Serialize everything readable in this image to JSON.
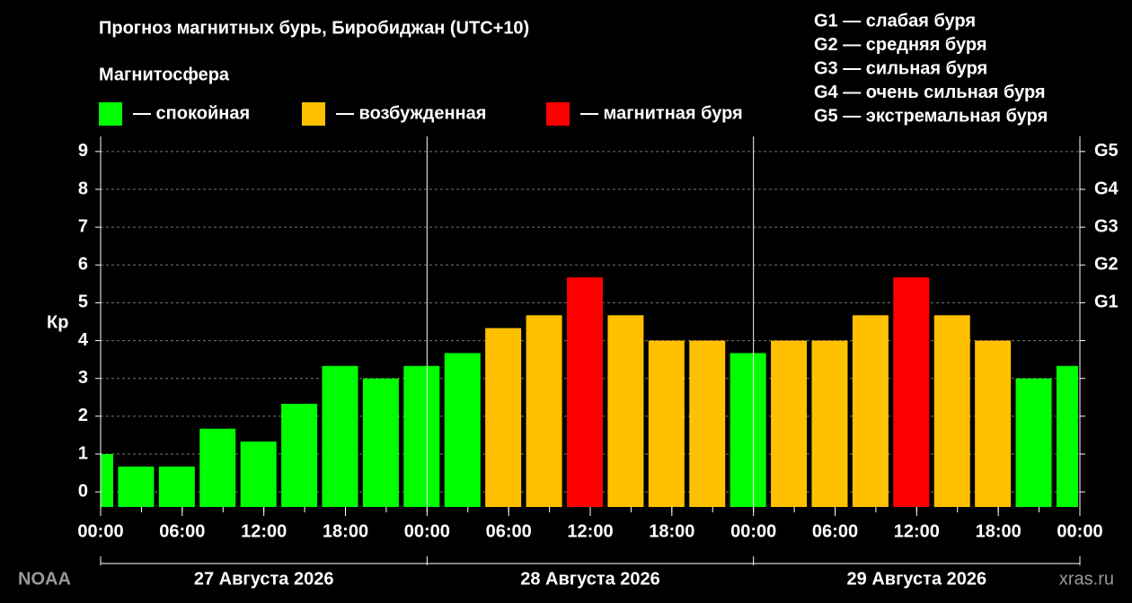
{
  "chart_data": {
    "type": "bar",
    "title": "Прогноз магнитных бурь, Биробиджан (UTC+10)",
    "legend_title": "Магнитосфера",
    "legend": [
      {
        "color": "#00ff00",
        "label": "— спокойная"
      },
      {
        "color": "#ffc000",
        "label": "— возбужденная"
      },
      {
        "color": "#ff0000",
        "label": "— магнитная буря"
      }
    ],
    "storm_levels": [
      "G1 — слабая буря",
      "G2 — средняя буря",
      "G3 — сильная буря",
      "G4 — очень сильная буря",
      "G5 — экстремальная буря"
    ],
    "ylabel": "Кр",
    "values": [
      1.0,
      0.67,
      0.67,
      1.67,
      1.33,
      2.33,
      3.33,
      3.0,
      3.33,
      3.67,
      4.33,
      4.67,
      5.67,
      4.67,
      4.0,
      4.0,
      3.67,
      4.0,
      4.0,
      4.67,
      5.67,
      4.67,
      4.0,
      3.0,
      3.33
    ],
    "colors": [
      "#00ff00",
      "#00ff00",
      "#00ff00",
      "#00ff00",
      "#00ff00",
      "#00ff00",
      "#00ff00",
      "#00ff00",
      "#00ff00",
      "#00ff00",
      "#ffc000",
      "#ffc000",
      "#ff0000",
      "#ffc000",
      "#ffc000",
      "#ffc000",
      "#00ff00",
      "#ffc000",
      "#ffc000",
      "#ffc000",
      "#ff0000",
      "#ffc000",
      "#ffc000",
      "#00ff00",
      "#00ff00"
    ],
    "ylim": [
      -0.4,
      9.4
    ],
    "yticks": [
      0,
      1,
      2,
      3,
      4,
      5,
      6,
      7,
      8,
      9
    ],
    "y2ticks": [
      {
        "value": 5,
        "label": "G1"
      },
      {
        "value": 6,
        "label": "G2"
      },
      {
        "value": 7,
        "label": "G3"
      },
      {
        "value": 8,
        "label": "G4"
      },
      {
        "value": 9,
        "label": "G5"
      }
    ],
    "xlim": [
      0,
      72
    ],
    "xticks": [
      {
        "value": 0,
        "label": "00:00"
      },
      {
        "value": 6,
        "label": "06:00"
      },
      {
        "value": 12,
        "label": "12:00"
      },
      {
        "value": 18,
        "label": "18:00"
      },
      {
        "value": 24,
        "label": "00:00"
      },
      {
        "value": 30,
        "label": "06:00"
      },
      {
        "value": 36,
        "label": "12:00"
      },
      {
        "value": 42,
        "label": "18:00"
      },
      {
        "value": 48,
        "label": "00:00"
      },
      {
        "value": 54,
        "label": "06:00"
      },
      {
        "value": 60,
        "label": "12:00"
      },
      {
        "value": 66,
        "label": "18:00"
      },
      {
        "value": 72,
        "label": "00:00"
      }
    ],
    "days": [
      "27 Августа 2026",
      "28 Августа 2026",
      "29 Августа 2026"
    ],
    "grid": true,
    "source": "NOAA",
    "site": "xras.ru"
  }
}
